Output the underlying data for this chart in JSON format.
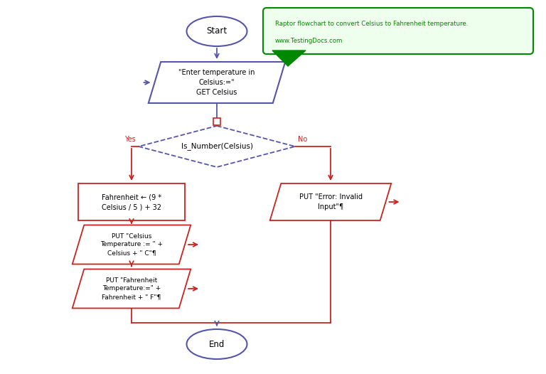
{
  "bg_color": "#ffffff",
  "blue_color": "#5555aa",
  "red_color": "#cc2222",
  "green_color": "#008800",
  "annotation_bg": "#eeffee",
  "annotation_text_line1": "Raptor flowchart to convert Celsius to Fahrenheit temperature.",
  "annotation_text_line2": "www.TestingDocs.com",
  "start_text": "Start",
  "end_text": "End",
  "input_text": "\"Enter temperature in\nCelsius:=\"\nGET Celsius",
  "decision_text": "Is_Number(Celsius)",
  "yes_label": "Yes",
  "no_label": "No",
  "assign_text": "Fahrenheit ← (9 *\nCelsius / 5 ) + 32",
  "output1_text": "PUT \"Celsius\nTemperature := \" +\nCelsius + \" C\"¶",
  "output2_text": "PUT \"Fahrenheit\nTemperature:=\" +\nFahrenheit + \" F\"¶",
  "error_text": "PUT \"Error: Invalid\nInput\"¶",
  "fig_w": 7.68,
  "fig_h": 5.26,
  "dpi": 100
}
